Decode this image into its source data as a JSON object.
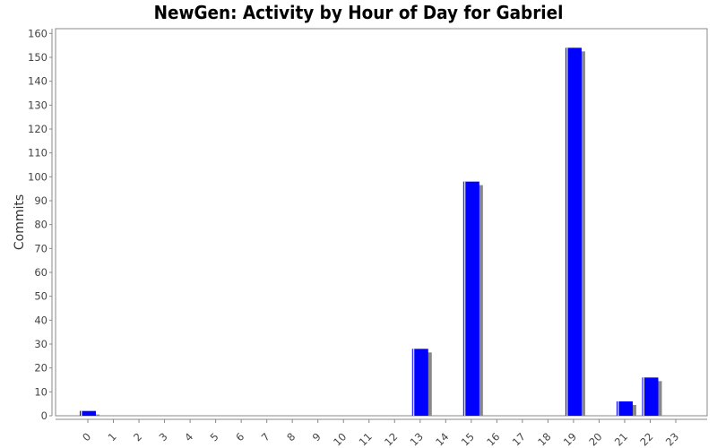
{
  "title": "NewGen: Activity by Hour of Day for Gabriel",
  "chart_data": {
    "type": "bar",
    "title": "NewGen: Activity by Hour of Day for Gabriel",
    "xlabel": "",
    "ylabel": "Commits",
    "ylim": [
      0,
      162
    ],
    "yticks": [
      0,
      10,
      20,
      30,
      40,
      50,
      60,
      70,
      80,
      90,
      100,
      110,
      120,
      130,
      140,
      150,
      160
    ],
    "categories": [
      "0",
      "1",
      "2",
      "3",
      "4",
      "5",
      "6",
      "7",
      "8",
      "9",
      "10",
      "11",
      "12",
      "13",
      "14",
      "15",
      "16",
      "17",
      "18",
      "19",
      "20",
      "21",
      "22",
      "23"
    ],
    "values": [
      2,
      0,
      0,
      0,
      0,
      0,
      0,
      0,
      0,
      0,
      0,
      0,
      0,
      28,
      0,
      98,
      0,
      0,
      0,
      154,
      0,
      6,
      16,
      0
    ],
    "bar_color": "#0000ff",
    "shadow_color": "#888888",
    "grid": false,
    "legend": "none"
  }
}
